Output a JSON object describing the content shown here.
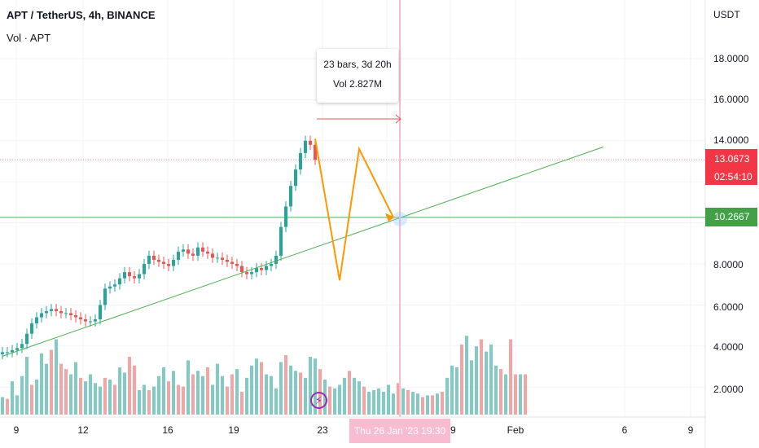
{
  "legend": {
    "title": "APT / TetherUS, 4h, BINANCE",
    "volume": "Vol · APT"
  },
  "price_axis": {
    "currency": "USDT",
    "ticks": [
      "18.0000",
      "16.0000",
      "14.0000",
      "8.0000",
      "6.0000",
      "4.0000",
      "2.0000"
    ],
    "current_price": "13.0673",
    "countdown": "02:54:10",
    "level_price": "10.2667"
  },
  "time_axis": {
    "ticks": [
      "9",
      "12",
      "16",
      "19",
      "23",
      "26",
      "29",
      "Feb",
      "6",
      "9"
    ],
    "crosshair_label": "Thu 26 Jan '23   19:30"
  },
  "measure": {
    "bars": "23 bars, 3d 20h",
    "volume": "Vol 2.827M"
  },
  "icons": {
    "bolt": "lightning-bolt-icon"
  },
  "colors": {
    "up": "#26a69a",
    "down": "#ef5350",
    "volume_up": "#80cbc4",
    "volume_down": "#f5a3a3",
    "trendline": "#4caf50",
    "projection": "#ff9800",
    "crosshair": "#f8bbd0",
    "current_price": "#f23645",
    "level": "#43a047"
  },
  "chart_data": {
    "type": "candlestick",
    "symbol": "APT / TetherUS",
    "interval": "4h",
    "exchange": "BINANCE",
    "ylim": [
      0.3,
      19.3
    ],
    "series": [
      {
        "name": "Vol · APT",
        "values": [
          1.0,
          0.9,
          1.9,
          1.1,
          2.2,
          3.3,
          1.7,
          2.0,
          3.5,
          2.9,
          3.7,
          4.3,
          2.9,
          2.6,
          2.3,
          3.0,
          2.1,
          1.9,
          2.3,
          1.8,
          1.6,
          2.1,
          2.0,
          1.7,
          2.7,
          2.4,
          3.3,
          2.8,
          1.4,
          1.7,
          1.4,
          1.6,
          2.2,
          2.7,
          1.9,
          2.5,
          1.7,
          1.6,
          3.1,
          2.3,
          2.5,
          2.2,
          2.7,
          1.7,
          2.9,
          2.2,
          1.6,
          2.3,
          2.6,
          1.3,
          2.1,
          2.8,
          3.2,
          3.0,
          2.3,
          2.2,
          1.5,
          3.0,
          3.4,
          2.8,
          2.5,
          2.4,
          2.1,
          3.3,
          3.2,
          2.6,
          2.0,
          1.6,
          1.5,
          1.7,
          2.1,
          2.5,
          2.1,
          1.9,
          1.6,
          1.3,
          1.4,
          1.5,
          1.3,
          1.7,
          1.2,
          1.8,
          1.5,
          1.4,
          1.3,
          1.2,
          1.0,
          1.1,
          1.1,
          1.2,
          1.3,
          2.1,
          2.8,
          2.7,
          4.0,
          4.5,
          3.1,
          3.9,
          4.3,
          3.6,
          4.0,
          2.8,
          2.6,
          2.3,
          4.3,
          2.3,
          2.3,
          2.3
        ]
      }
    ],
    "annotations": {
      "trendline": [
        [
          0,
          3.5
        ],
        [
          123,
          13.7
        ]
      ],
      "projection_path": [
        [
          64,
          14.1
        ],
        [
          69,
          7.2
        ],
        [
          73,
          13.6
        ],
        [
          80,
          10.27
        ]
      ],
      "horizontal_level": 10.2667,
      "current_price": 13.0673,
      "measure": {
        "bars": 23,
        "duration": "3d 20h",
        "volume": "2.827M"
      },
      "crosshair_time": "Thu 26 Jan '23 19:30"
    }
  }
}
